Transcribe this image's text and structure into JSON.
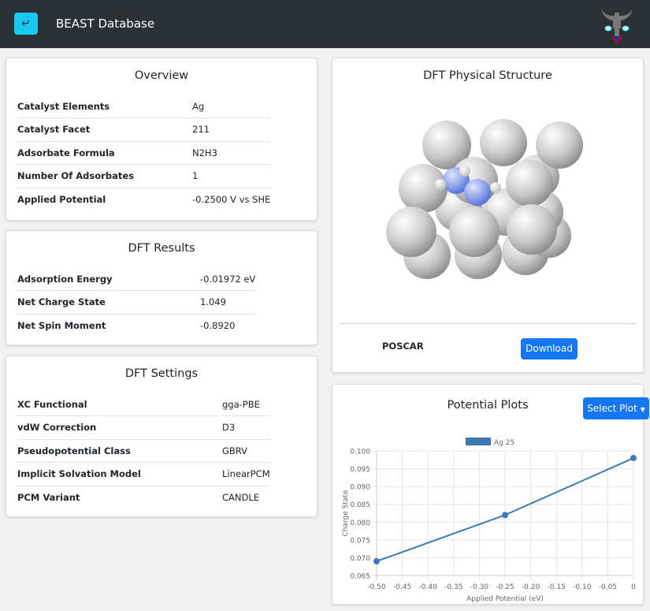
{
  "header": {
    "back_icon": "return-arrow-icon",
    "title": "BEAST Database",
    "logo": "beast-logo"
  },
  "overview": {
    "title": "Overview",
    "rows": [
      {
        "k": "Catalyst Elements",
        "v": "Ag"
      },
      {
        "k": "Catalyst Facet",
        "v": "211"
      },
      {
        "k": "Adsorbate Formula",
        "v": "N2H3"
      },
      {
        "k": "Number Of Adsorbates",
        "v": "1"
      },
      {
        "k": "Applied Potential",
        "v": "-0.2500 V vs SHE"
      }
    ]
  },
  "results": {
    "title": "DFT Results",
    "rows": [
      {
        "k": "Adsorption Energy",
        "v": "-0.01972 eV"
      },
      {
        "k": "Net Charge State",
        "v": "1.049"
      },
      {
        "k": "Net Spin Moment",
        "v": "-0.8920"
      }
    ]
  },
  "settings": {
    "title": "DFT Settings",
    "rows": [
      {
        "k": "XC Functional",
        "v": "gga-PBE"
      },
      {
        "k": "vdW Correction",
        "v": "D3"
      },
      {
        "k": "Pseudopotential Class",
        "v": "GBRV"
      },
      {
        "k": "Implicit Solvation Model",
        "v": "LinearPCM"
      },
      {
        "k": "PCM Variant",
        "v": "CANDLE"
      }
    ]
  },
  "structure": {
    "title": "DFT Physical Structure",
    "file_label": "POSCAR",
    "download_label": "Download"
  },
  "plots": {
    "title": "Potential Plots",
    "select_label": "Select Plot"
  },
  "chart_data": {
    "type": "line",
    "title": "",
    "legend": [
      "Ag 25"
    ],
    "legend_position": "top",
    "xlabel": "Applied Potential (eV)",
    "ylabel": "Charge State",
    "x": [
      -0.5,
      -0.25,
      0
    ],
    "series": [
      {
        "name": "Ag 25",
        "values": [
          0.069,
          0.082,
          0.098
        ],
        "color": "#3b7ab3"
      }
    ],
    "xlim": [
      -0.5,
      0
    ],
    "ylim": [
      0.065,
      0.1
    ],
    "xticks": [
      "-0.50",
      "-0.45",
      "-0.40",
      "-0.35",
      "-0.30",
      "-0.25",
      "-0.20",
      "-0.15",
      "-0.10",
      "-0.05",
      "0"
    ],
    "yticks": [
      "0.065",
      "0.070",
      "0.075",
      "0.080",
      "0.085",
      "0.090",
      "0.095",
      "0.100"
    ],
    "grid": true
  }
}
